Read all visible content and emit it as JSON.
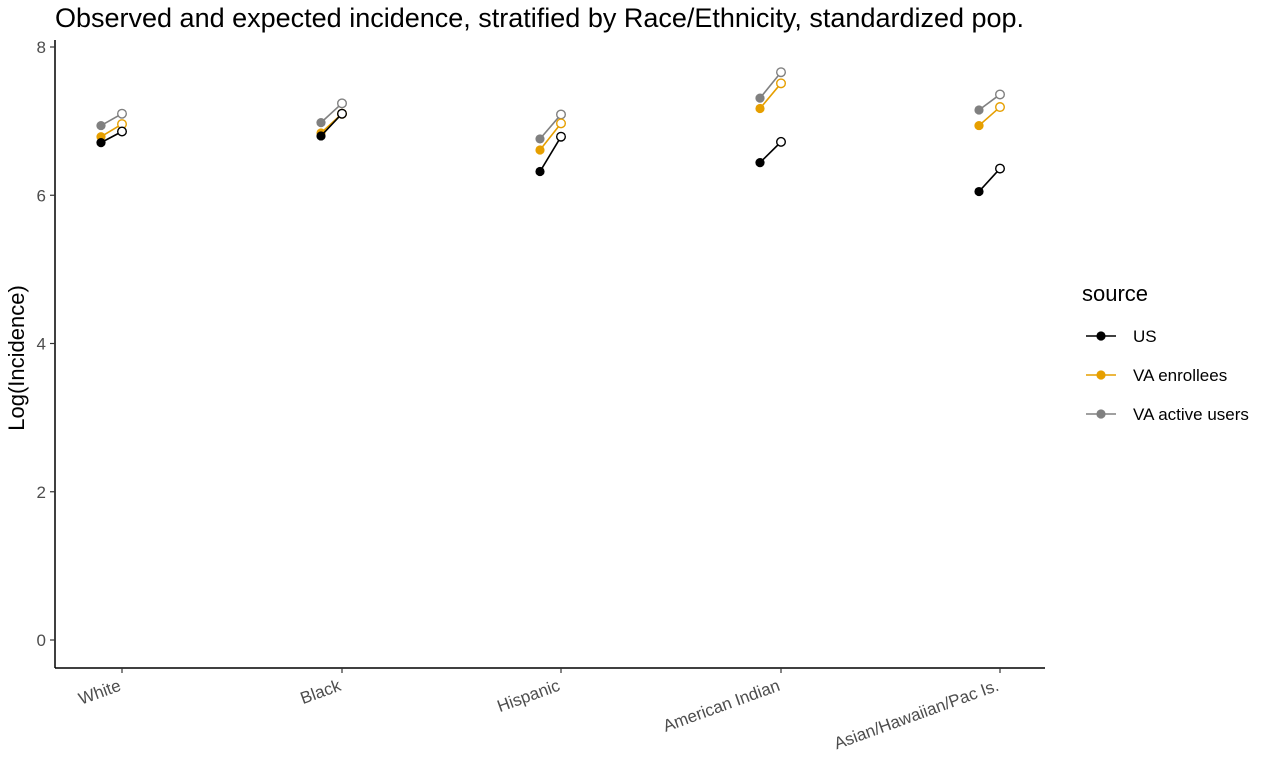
{
  "chart_data": {
    "type": "scatter",
    "title": "Observed and expected incidence, stratified by Race/Ethnicity, standardized pop.",
    "xlabel": "",
    "ylabel": "Log(Incidence)",
    "ylim": [
      -0.4,
      8.0
    ],
    "yticks": [
      0,
      2,
      4,
      6,
      8
    ],
    "categories": [
      "White",
      "Black",
      "Hispanic",
      "American Indian",
      "Asian/Hawaiian/Pac Is."
    ],
    "legend": {
      "title": "source",
      "position": "right"
    },
    "grid": false,
    "marker_meaning": {
      "filled": "observed",
      "open": "expected"
    },
    "series": [
      {
        "name": "US",
        "color": "#000000",
        "observed": [
          6.71,
          6.8,
          6.32,
          6.44,
          6.05
        ],
        "expected": [
          6.86,
          7.1,
          6.79,
          6.72,
          6.36
        ]
      },
      {
        "name": "VA enrollees",
        "color": "#E69F00",
        "observed": [
          6.79,
          6.84,
          6.61,
          7.17,
          6.94
        ],
        "expected": [
          6.96,
          7.1,
          6.97,
          7.51,
          7.19
        ]
      },
      {
        "name": "VA active users",
        "color": "#808080",
        "observed": [
          6.94,
          6.98,
          6.76,
          7.31,
          7.15
        ],
        "expected": [
          7.1,
          7.24,
          7.09,
          7.66,
          7.36
        ]
      }
    ]
  }
}
